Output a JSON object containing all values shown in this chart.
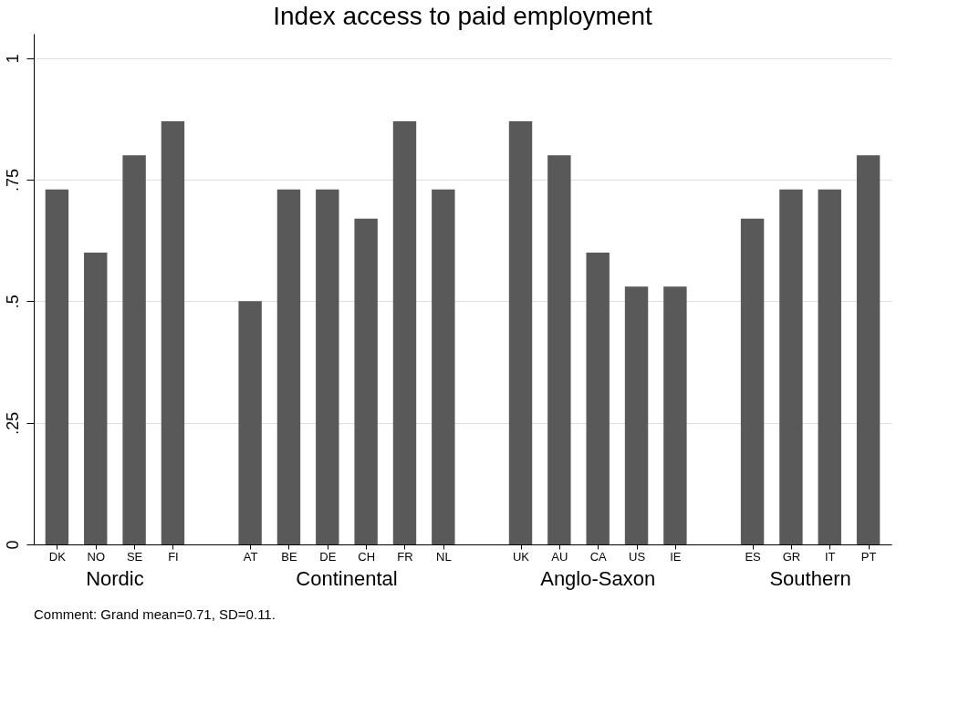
{
  "chart_data": {
    "type": "bar",
    "title": "Index access to paid employment",
    "categories": [
      "DK",
      "NO",
      "SE",
      "FI",
      null,
      "AT",
      "BE",
      "DE",
      "CH",
      "FR",
      "NL",
      null,
      "UK",
      "AU",
      "CA",
      "US",
      "IE",
      null,
      "ES",
      "GR",
      "IT",
      "PT"
    ],
    "values": [
      0.73,
      0.6,
      0.8,
      0.87,
      null,
      0.5,
      0.73,
      0.73,
      0.67,
      0.87,
      0.73,
      null,
      0.87,
      0.8,
      0.6,
      0.53,
      0.53,
      null,
      0.67,
      0.73,
      0.73,
      0.8
    ],
    "color": "#595959",
    "ylim": [
      0,
      1.05
    ],
    "yticks": [
      0,
      {
        "value": 0.25,
        "label": ".25"
      },
      {
        "value": 0.5,
        "label": ".5"
      },
      {
        "value": 0.75,
        "label": ".75"
      },
      1
    ],
    "grid": "y",
    "annotations": [
      "Nordic",
      "Continental",
      "Anglo-Saxon",
      "Southern",
      "Comment: Grand mean=0.71, SD=0.11."
    ]
  }
}
